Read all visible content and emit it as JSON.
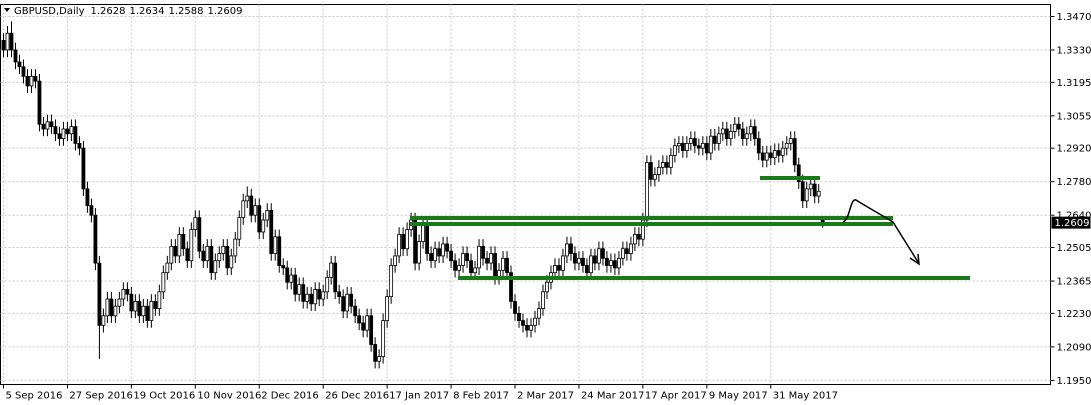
{
  "chart_data": {
    "type": "candlestick",
    "symbol": "GBPUSD,Daily",
    "open": [
      1.337,
      1.333,
      1.34,
      1.333,
      1.328,
      1.326,
      1.322,
      1.318,
      1.322,
      1.32,
      1.302,
      1.3,
      1.303,
      1.301,
      1.298,
      1.296,
      1.3,
      1.298,
      1.301,
      1.294,
      1.292,
      1.275,
      1.268,
      1.264,
      1.244,
      1.218,
      1.222,
      1.229,
      1.222,
      1.226,
      1.229,
      1.233,
      1.231,
      1.224,
      1.228,
      1.222,
      1.226,
      1.22,
      1.228,
      1.225,
      1.232,
      1.24,
      1.244,
      1.251,
      1.247,
      1.256,
      1.25,
      1.245,
      1.258,
      1.263,
      1.249,
      1.245,
      1.251,
      1.24,
      1.245,
      1.248,
      1.251,
      1.242,
      1.247,
      1.254,
      1.263,
      1.27,
      1.272,
      1.264,
      1.268,
      1.257,
      1.262,
      1.266,
      1.248,
      1.255,
      1.243,
      1.242,
      1.236,
      1.239,
      1.231,
      1.235,
      1.228,
      1.231,
      1.227,
      1.233,
      1.229,
      1.232,
      1.238,
      1.244,
      1.232,
      1.23,
      1.224,
      1.231,
      1.226,
      1.222,
      1.219,
      1.216,
      1.222,
      1.21,
      1.203,
      1.205,
      1.22,
      1.23,
      1.243,
      1.247,
      1.256,
      1.25,
      1.258,
      1.262,
      1.244,
      1.253,
      1.26,
      1.248,
      1.245,
      1.25,
      1.247,
      1.252,
      1.249,
      1.245,
      1.241,
      1.243,
      1.248,
      1.245,
      1.24,
      1.242,
      1.251,
      1.246,
      1.244,
      1.248,
      1.238,
      1.241,
      1.246,
      1.24,
      1.228,
      1.223,
      1.22,
      1.218,
      1.216,
      1.218,
      1.221,
      1.225,
      1.232,
      1.236,
      1.24,
      1.243,
      1.241,
      1.247,
      1.252,
      1.248,
      1.244,
      1.246,
      1.243,
      1.24,
      1.247,
      1.244,
      1.25,
      1.246,
      1.243,
      1.245,
      1.242,
      1.246,
      1.25,
      1.248,
      1.252,
      1.256,
      1.254,
      1.262,
      1.286,
      1.279,
      1.281,
      1.284,
      1.286,
      1.284,
      1.289,
      1.293,
      1.294,
      1.291,
      1.294,
      1.296,
      1.293,
      1.292,
      1.294,
      1.29,
      1.297,
      1.294,
      1.298,
      1.3,
      1.296,
      1.299,
      1.302,
      1.3,
      1.296,
      1.298,
      1.301,
      1.296,
      1.29,
      1.287,
      1.29,
      1.288,
      1.291,
      1.289,
      1.292,
      1.294,
      1.296,
      1.285,
      1.278,
      1.27,
      1.275,
      1.277,
      1.272,
      1.2628
    ],
    "high": [
      1.34,
      1.343,
      1.345,
      1.336,
      1.331,
      1.329,
      1.325,
      1.325,
      1.325,
      1.323,
      1.305,
      1.306,
      1.306,
      1.304,
      1.301,
      1.303,
      1.303,
      1.304,
      1.304,
      1.297,
      1.295,
      1.278,
      1.271,
      1.267,
      1.247,
      1.225,
      1.232,
      1.232,
      1.229,
      1.232,
      1.236,
      1.236,
      1.234,
      1.231,
      1.231,
      1.229,
      1.229,
      1.231,
      1.231,
      1.235,
      1.243,
      1.247,
      1.254,
      1.254,
      1.259,
      1.259,
      1.253,
      1.261,
      1.266,
      1.266,
      1.252,
      1.254,
      1.254,
      1.248,
      1.251,
      1.254,
      1.254,
      1.25,
      1.257,
      1.266,
      1.273,
      1.276,
      1.275,
      1.271,
      1.271,
      1.265,
      1.269,
      1.269,
      1.258,
      1.258,
      1.246,
      1.245,
      1.242,
      1.242,
      1.238,
      1.238,
      1.234,
      1.234,
      1.236,
      1.236,
      1.235,
      1.241,
      1.247,
      1.247,
      1.235,
      1.233,
      1.234,
      1.234,
      1.229,
      1.225,
      1.222,
      1.225,
      1.225,
      1.213,
      1.208,
      1.223,
      1.233,
      1.246,
      1.25,
      1.259,
      1.259,
      1.261,
      1.265,
      1.265,
      1.256,
      1.263,
      1.263,
      1.251,
      1.253,
      1.253,
      1.255,
      1.255,
      1.252,
      1.248,
      1.246,
      1.251,
      1.251,
      1.248,
      1.245,
      1.254,
      1.254,
      1.249,
      1.251,
      1.251,
      1.244,
      1.249,
      1.249,
      1.243,
      1.231,
      1.226,
      1.223,
      1.221,
      1.221,
      1.224,
      1.228,
      1.235,
      1.239,
      1.243,
      1.246,
      1.246,
      1.25,
      1.255,
      1.255,
      1.251,
      1.249,
      1.249,
      1.246,
      1.25,
      1.25,
      1.253,
      1.253,
      1.249,
      1.248,
      1.248,
      1.249,
      1.253,
      1.253,
      1.255,
      1.259,
      1.259,
      1.265,
      1.289,
      1.289,
      1.284,
      1.287,
      1.289,
      1.289,
      1.292,
      1.296,
      1.297,
      1.297,
      1.297,
      1.299,
      1.299,
      1.296,
      1.297,
      1.297,
      1.3,
      1.3,
      1.301,
      1.303,
      1.303,
      1.302,
      1.305,
      1.305,
      1.303,
      1.301,
      1.304,
      1.304,
      1.299,
      1.293,
      1.293,
      1.293,
      1.294,
      1.294,
      1.295,
      1.297,
      1.299,
      1.299,
      1.288,
      1.281,
      1.278,
      1.28,
      1.28,
      1.277,
      1.2634
    ],
    "low": [
      1.33,
      1.33,
      1.33,
      1.325,
      1.323,
      1.319,
      1.315,
      1.315,
      1.317,
      1.299,
      1.297,
      1.297,
      1.298,
      1.295,
      1.293,
      1.293,
      1.295,
      1.295,
      1.291,
      1.289,
      1.272,
      1.265,
      1.261,
      1.241,
      1.204,
      1.215,
      1.219,
      1.219,
      1.219,
      1.223,
      1.226,
      1.228,
      1.221,
      1.221,
      1.219,
      1.219,
      1.217,
      1.217,
      1.222,
      1.222,
      1.229,
      1.237,
      1.241,
      1.244,
      1.244,
      1.247,
      1.242,
      1.242,
      1.255,
      1.246,
      1.242,
      1.242,
      1.237,
      1.237,
      1.242,
      1.245,
      1.239,
      1.239,
      1.244,
      1.251,
      1.26,
      1.267,
      1.261,
      1.261,
      1.254,
      1.254,
      1.259,
      1.245,
      1.245,
      1.24,
      1.239,
      1.233,
      1.233,
      1.228,
      1.228,
      1.225,
      1.225,
      1.224,
      1.224,
      1.226,
      1.226,
      1.229,
      1.235,
      1.229,
      1.227,
      1.221,
      1.221,
      1.223,
      1.219,
      1.216,
      1.213,
      1.213,
      1.207,
      1.2,
      1.2,
      1.202,
      1.217,
      1.227,
      1.24,
      1.244,
      1.247,
      1.247,
      1.255,
      1.241,
      1.241,
      1.25,
      1.245,
      1.242,
      1.242,
      1.244,
      1.244,
      1.246,
      1.242,
      1.238,
      1.238,
      1.24,
      1.242,
      1.237,
      1.237,
      1.239,
      1.243,
      1.241,
      1.241,
      1.235,
      1.235,
      1.238,
      1.237,
      1.225,
      1.22,
      1.217,
      1.215,
      1.213,
      1.213,
      1.215,
      1.218,
      1.222,
      1.229,
      1.233,
      1.237,
      1.238,
      1.238,
      1.244,
      1.245,
      1.241,
      1.241,
      1.24,
      1.237,
      1.237,
      1.241,
      1.241,
      1.243,
      1.24,
      1.24,
      1.239,
      1.239,
      1.243,
      1.245,
      1.245,
      1.249,
      1.251,
      1.251,
      1.259,
      1.276,
      1.276,
      1.278,
      1.281,
      1.281,
      1.281,
      1.286,
      1.29,
      1.288,
      1.288,
      1.291,
      1.29,
      1.289,
      1.289,
      1.287,
      1.287,
      1.291,
      1.291,
      1.295,
      1.293,
      1.293,
      1.296,
      1.297,
      1.293,
      1.293,
      1.295,
      1.293,
      1.287,
      1.284,
      1.284,
      1.285,
      1.285,
      1.286,
      1.286,
      1.289,
      1.291,
      1.282,
      1.275,
      1.267,
      1.267,
      1.272,
      1.269,
      1.269,
      1.2588
    ],
    "close": [
      1.333,
      1.34,
      1.333,
      1.328,
      1.326,
      1.322,
      1.318,
      1.322,
      1.32,
      1.302,
      1.3,
      1.303,
      1.301,
      1.298,
      1.296,
      1.3,
      1.298,
      1.301,
      1.294,
      1.292,
      1.275,
      1.268,
      1.264,
      1.244,
      1.218,
      1.222,
      1.229,
      1.222,
      1.226,
      1.229,
      1.233,
      1.231,
      1.224,
      1.228,
      1.222,
      1.226,
      1.22,
      1.228,
      1.225,
      1.232,
      1.24,
      1.244,
      1.251,
      1.247,
      1.256,
      1.25,
      1.245,
      1.258,
      1.263,
      1.249,
      1.245,
      1.251,
      1.24,
      1.245,
      1.248,
      1.251,
      1.242,
      1.247,
      1.254,
      1.263,
      1.27,
      1.272,
      1.264,
      1.268,
      1.257,
      1.262,
      1.266,
      1.248,
      1.255,
      1.243,
      1.242,
      1.236,
      1.239,
      1.231,
      1.235,
      1.228,
      1.231,
      1.227,
      1.233,
      1.229,
      1.232,
      1.238,
      1.244,
      1.232,
      1.23,
      1.224,
      1.231,
      1.226,
      1.222,
      1.219,
      1.216,
      1.222,
      1.21,
      1.203,
      1.205,
      1.22,
      1.23,
      1.243,
      1.247,
      1.256,
      1.25,
      1.258,
      1.262,
      1.244,
      1.253,
      1.26,
      1.248,
      1.245,
      1.25,
      1.247,
      1.252,
      1.249,
      1.245,
      1.241,
      1.243,
      1.248,
      1.245,
      1.24,
      1.242,
      1.251,
      1.246,
      1.244,
      1.248,
      1.238,
      1.241,
      1.246,
      1.24,
      1.228,
      1.223,
      1.22,
      1.218,
      1.216,
      1.218,
      1.221,
      1.225,
      1.232,
      1.236,
      1.24,
      1.243,
      1.241,
      1.247,
      1.252,
      1.248,
      1.244,
      1.246,
      1.243,
      1.24,
      1.247,
      1.244,
      1.25,
      1.246,
      1.243,
      1.245,
      1.242,
      1.246,
      1.25,
      1.248,
      1.252,
      1.256,
      1.254,
      1.262,
      1.286,
      1.279,
      1.281,
      1.284,
      1.286,
      1.284,
      1.289,
      1.293,
      1.294,
      1.291,
      1.294,
      1.296,
      1.293,
      1.292,
      1.294,
      1.29,
      1.297,
      1.294,
      1.298,
      1.3,
      1.296,
      1.299,
      1.302,
      1.3,
      1.296,
      1.298,
      1.301,
      1.296,
      1.29,
      1.287,
      1.29,
      1.288,
      1.291,
      1.289,
      1.292,
      1.294,
      1.296,
      1.285,
      1.278,
      1.27,
      1.275,
      1.277,
      1.272,
      1.274,
      1.2609
    ],
    "xlim": [
      -0.75,
      262
    ],
    "xticks": [
      {
        "value": 0,
        "label": "5 Sep 2016"
      },
      {
        "value": 16,
        "label": "27 Sep 2016"
      },
      {
        "value": 32,
        "label": "19 Oct 2016"
      },
      {
        "value": 48,
        "label": "10 Nov 2016"
      },
      {
        "value": 64,
        "label": "2 Dec 2016"
      },
      {
        "value": 80,
        "label": "26 Dec 2016"
      },
      {
        "value": 96,
        "label": "17 Jan 2017"
      },
      {
        "value": 112,
        "label": "8 Feb 2017"
      },
      {
        "value": 128,
        "label": "2 Mar 2017"
      },
      {
        "value": 144,
        "label": "24 Mar 2017"
      },
      {
        "value": 160,
        "label": "17 Apr 2017"
      },
      {
        "value": 176,
        "label": "9 May 2017"
      },
      {
        "value": 192,
        "label": "31 May 2017"
      }
    ],
    "ylim": [
      1.1933,
      1.352
    ],
    "yticks": [
      {
        "value": 1.347,
        "label": "1.3470"
      },
      {
        "value": 1.333,
        "label": "1.3330"
      },
      1.3195,
      1.3055,
      {
        "value": 1.292,
        "label": "1.2920"
      },
      {
        "value": 1.278,
        "label": "1.2780"
      },
      {
        "value": 1.264,
        "label": "1.2640"
      },
      1.2505,
      1.2365,
      {
        "value": 1.223,
        "label": "1.2230"
      },
      {
        "value": 1.209,
        "label": "1.2090"
      },
      {
        "value": 1.195,
        "label": "1.1950"
      }
    ],
    "grid": true,
    "up_color": "#ffffff",
    "down_color": "#000000"
  }
}
